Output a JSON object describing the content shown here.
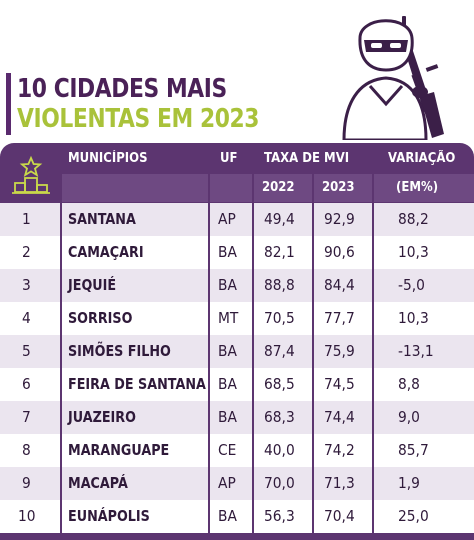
{
  "title": {
    "line1": "10 CIDADES MAIS",
    "line2": "VIOLENTAS EM 2023"
  },
  "colors": {
    "header_bg": "#5c3570",
    "title_primary": "#4a2157",
    "title_accent": "#a9c23a",
    "row_alt": "#ebe5ef"
  },
  "table": {
    "headers": {
      "icon": "podium-star-icon",
      "municipios": "MUNICÍPIOS",
      "uf": "UF",
      "taxa": "TAXA DE MVI",
      "year1": "2022",
      "year2": "2023",
      "variacao": "VARIAÇÃO",
      "variacao_unit": "(EM%)"
    },
    "rows": [
      {
        "rank": "1",
        "city": "SANTANA",
        "uf": "AP",
        "y2022": "49,4",
        "y2023": "92,9",
        "var": "88,2"
      },
      {
        "rank": "2",
        "city": "CAMAÇARI",
        "uf": "BA",
        "y2022": "82,1",
        "y2023": "90,6",
        "var": "10,3"
      },
      {
        "rank": "3",
        "city": "JEQUIÉ",
        "uf": "BA",
        "y2022": "88,8",
        "y2023": "84,4",
        "var": "-5,0"
      },
      {
        "rank": "4",
        "city": "SORRISO",
        "uf": "MT",
        "y2022": "70,5",
        "y2023": "77,7",
        "var": "10,3"
      },
      {
        "rank": "5",
        "city": "SIMÕES FILHO",
        "uf": "BA",
        "y2022": "87,4",
        "y2023": "75,9",
        "var": "-13,1"
      },
      {
        "rank": "6",
        "city": "FEIRA DE SANTANA",
        "uf": "BA",
        "y2022": "68,5",
        "y2023": "74,5",
        "var": "8,8"
      },
      {
        "rank": "7",
        "city": "JUAZEIRO",
        "uf": "BA",
        "y2022": "68,3",
        "y2023": "74,4",
        "var": "9,0"
      },
      {
        "rank": "8",
        "city": "MARANGUAPE",
        "uf": "CE",
        "y2022": "40,0",
        "y2023": "74,2",
        "var": "85,7"
      },
      {
        "rank": "9",
        "city": "MACAPÁ",
        "uf": "AP",
        "y2022": "70,0",
        "y2023": "71,3",
        "var": "1,9"
      },
      {
        "rank": "10",
        "city": "EUNÁPOLIS",
        "uf": "BA",
        "y2022": "56,3",
        "y2023": "70,4",
        "var": "25,0"
      }
    ]
  },
  "illustration": {
    "icon": "masked-gunman-icon"
  }
}
